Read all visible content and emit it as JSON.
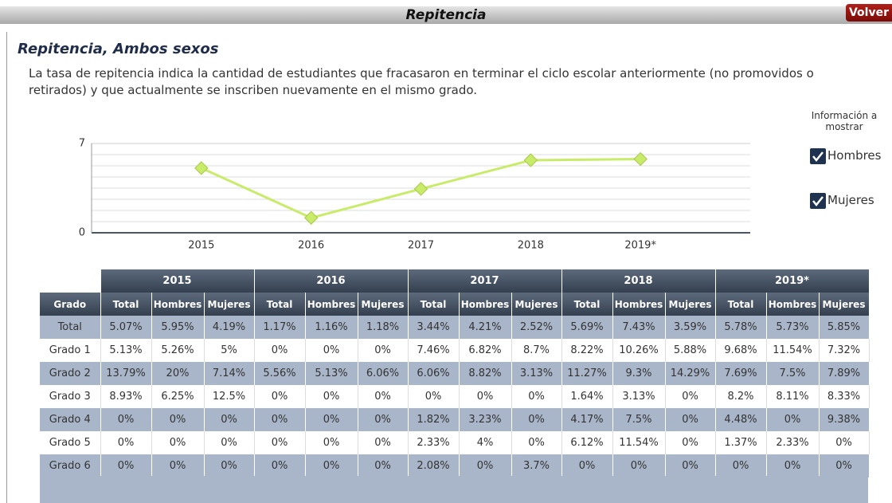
{
  "header": {
    "title": "Repitencia",
    "back_button": "Volver"
  },
  "section": {
    "title": "Repitencia, Ambos sexos",
    "description": "La tasa de repitencia indica la cantidad de estudiantes que fracasaron en terminar el ciclo escolar anteriormente (no promovidos o retirados) y que actualmente se inscriben nuevamente en el mismo grado."
  },
  "chart_data": {
    "type": "line",
    "categories": [
      "2015",
      "2016",
      "2017",
      "2018",
      "2019*"
    ],
    "values": [
      5.07,
      1.17,
      3.44,
      5.69,
      5.78
    ],
    "color": "#c8ec6a",
    "ylim": [
      0,
      7
    ],
    "yticks": [
      0,
      7
    ],
    "grid": true
  },
  "controls": {
    "title": "Información a mostrar",
    "options": [
      {
        "label": "Hombres",
        "checked": true
      },
      {
        "label": "Mujeres",
        "checked": true
      }
    ]
  },
  "table": {
    "years": [
      "2015",
      "2016",
      "2017",
      "2018",
      "2019*"
    ],
    "first_column": "Grado",
    "group_columns": [
      "Total",
      "Hombres",
      "Mujeres"
    ],
    "rows": [
      [
        "Total",
        "5.07%",
        "5.95%",
        "4.19%",
        "1.17%",
        "1.16%",
        "1.18%",
        "3.44%",
        "4.21%",
        "2.52%",
        "5.69%",
        "7.43%",
        "3.59%",
        "5.78%",
        "5.73%",
        "5.85%"
      ],
      [
        "Grado 1",
        "5.13%",
        "5.26%",
        "5%",
        "0%",
        "0%",
        "0%",
        "7.46%",
        "6.82%",
        "8.7%",
        "8.22%",
        "10.26%",
        "5.88%",
        "9.68%",
        "11.54%",
        "7.32%"
      ],
      [
        "Grado 2",
        "13.79%",
        "20%",
        "7.14%",
        "5.56%",
        "5.13%",
        "6.06%",
        "6.06%",
        "8.82%",
        "3.13%",
        "11.27%",
        "9.3%",
        "14.29%",
        "7.69%",
        "7.5%",
        "7.89%"
      ],
      [
        "Grado 3",
        "8.93%",
        "6.25%",
        "12.5%",
        "0%",
        "0%",
        "0%",
        "0%",
        "0%",
        "0%",
        "1.64%",
        "3.13%",
        "0%",
        "8.2%",
        "8.11%",
        "8.33%"
      ],
      [
        "Grado 4",
        "0%",
        "0%",
        "0%",
        "0%",
        "0%",
        "0%",
        "1.82%",
        "3.23%",
        "0%",
        "4.17%",
        "7.5%",
        "0%",
        "4.48%",
        "0%",
        "9.38%"
      ],
      [
        "Grado 5",
        "0%",
        "0%",
        "0%",
        "0%",
        "0%",
        "0%",
        "2.33%",
        "4%",
        "0%",
        "6.12%",
        "11.54%",
        "0%",
        "1.37%",
        "2.33%",
        "0%"
      ],
      [
        "Grado 6",
        "0%",
        "0%",
        "0%",
        "0%",
        "0%",
        "0%",
        "2.08%",
        "0%",
        "3.7%",
        "0%",
        "0%",
        "0%",
        "0%",
        "0%",
        "0%"
      ]
    ]
  }
}
